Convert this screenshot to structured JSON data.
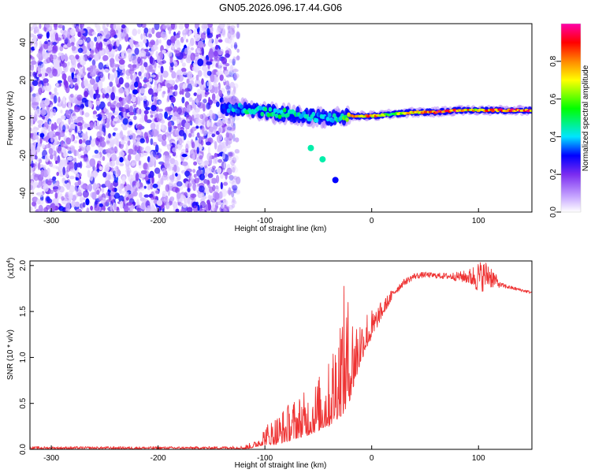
{
  "title": "GN05.2026.096.17.44.G06",
  "chart_data": [
    {
      "type": "heatmap",
      "name": "spectrogram",
      "xlabel": "Height of straight line (km)",
      "ylabel": "Frequency (Hz)",
      "xlim": [
        -320,
        150
      ],
      "ylim": [
        -50,
        50
      ],
      "xticks": [
        "-300",
        "-200",
        "-100",
        "0",
        "100"
      ],
      "xtick_values": [
        -300,
        -200,
        -100,
        0,
        100
      ],
      "yticks": [
        "-40",
        "-20",
        "0",
        "20",
        "40"
      ],
      "ytick_values": [
        -40,
        -20,
        0,
        20,
        40
      ],
      "colorbar": {
        "label": "Normalized spectral amplitude",
        "range": [
          0,
          1
        ],
        "ticks": [
          "0.0",
          "0.2",
          "0.4",
          "0.6",
          "0.8"
        ],
        "tick_values": [
          0.0,
          0.2,
          0.4,
          0.6,
          0.8
        ],
        "colors": [
          "#ffffff",
          "#c8a8ff",
          "#7b2cf0",
          "#0000ff",
          "#00e5ff",
          "#00ff00",
          "#ffff00",
          "#ff8800",
          "#ff0000",
          "#ff00aa"
        ]
      },
      "noise_region": {
        "x": [
          -320,
          -125
        ],
        "y": [
          -50,
          50
        ]
      },
      "signal_track": [
        {
          "x": -140,
          "f": 5,
          "amp": 0.35
        },
        {
          "x": -120,
          "f": 5,
          "amp": 0.45
        },
        {
          "x": -100,
          "f": 3,
          "amp": 0.5
        },
        {
          "x": -80,
          "f": 2,
          "amp": 0.5
        },
        {
          "x": -60,
          "f": 1,
          "amp": 0.45
        },
        {
          "x": -40,
          "f": 0,
          "amp": 0.4
        },
        {
          "x": -30,
          "f": 0,
          "amp": 0.45
        },
        {
          "x": -20,
          "f": 1,
          "amp": 0.75
        },
        {
          "x": 0,
          "f": 1,
          "amp": 0.85
        },
        {
          "x": 20,
          "f": 2,
          "amp": 0.6
        },
        {
          "x": 40,
          "f": 3,
          "amp": 0.8
        },
        {
          "x": 60,
          "f": 3,
          "amp": 0.95
        },
        {
          "x": 80,
          "f": 4,
          "amp": 0.9
        },
        {
          "x": 100,
          "f": 4,
          "amp": 0.75
        },
        {
          "x": 120,
          "f": 4,
          "amp": 0.95
        },
        {
          "x": 150,
          "f": 4,
          "amp": 0.9
        }
      ],
      "outliers": [
        {
          "x": -57,
          "f": -16,
          "amp": 0.45
        },
        {
          "x": -46,
          "f": -22,
          "amp": 0.45
        },
        {
          "x": -34,
          "f": -33,
          "amp": 0.3
        }
      ]
    },
    {
      "type": "line",
      "name": "snr",
      "xlabel": "Height of straight line (km)",
      "ylabel": "SNR (10 * v/v)",
      "y_multiplier": "(x10",
      "y_multiplier_exp": "4",
      "y_multiplier_close": ")",
      "xlim": [
        -320,
        150
      ],
      "ylim": [
        0,
        2.05
      ],
      "xticks": [
        "-300",
        "-200",
        "-100",
        "0",
        "100"
      ],
      "xtick_values": [
        -300,
        -200,
        -100,
        0,
        100
      ],
      "yticks": [
        "0.0",
        "0.5",
        "1.0",
        "1.5",
        "2.0"
      ],
      "ytick_values": [
        0.0,
        0.5,
        1.0,
        1.5,
        2.0
      ],
      "color": "#ee3333",
      "series": [
        {
          "name": "SNR",
          "x": [
            -320,
            -250,
            -200,
            -150,
            -120,
            -110,
            -100,
            -90,
            -80,
            -70,
            -60,
            -50,
            -40,
            -30,
            -25,
            -20,
            -15,
            -10,
            -5,
            0,
            10,
            20,
            30,
            40,
            50,
            60,
            70,
            80,
            90,
            100,
            110,
            120,
            130,
            150
          ],
          "envelope_low": [
            0.0,
            0.0,
            0.0,
            0.0,
            0.0,
            0.02,
            0.05,
            0.05,
            0.08,
            0.12,
            0.15,
            0.2,
            0.25,
            0.35,
            0.4,
            0.55,
            0.75,
            0.95,
            1.1,
            1.2,
            1.45,
            1.65,
            1.78,
            1.85,
            1.87,
            1.86,
            1.85,
            1.83,
            1.8,
            1.7,
            1.75,
            1.76,
            1.74,
            1.69
          ],
          "envelope_high": [
            0.03,
            0.03,
            0.03,
            0.03,
            0.04,
            0.08,
            0.25,
            0.35,
            0.45,
            0.55,
            0.6,
            0.75,
            0.9,
            1.5,
            1.7,
            1.5,
            1.45,
            1.45,
            1.5,
            1.5,
            1.6,
            1.75,
            1.85,
            1.92,
            1.93,
            1.92,
            1.92,
            1.93,
            1.95,
            2.05,
            2.05,
            1.82,
            1.78,
            1.72
          ]
        }
      ]
    }
  ]
}
